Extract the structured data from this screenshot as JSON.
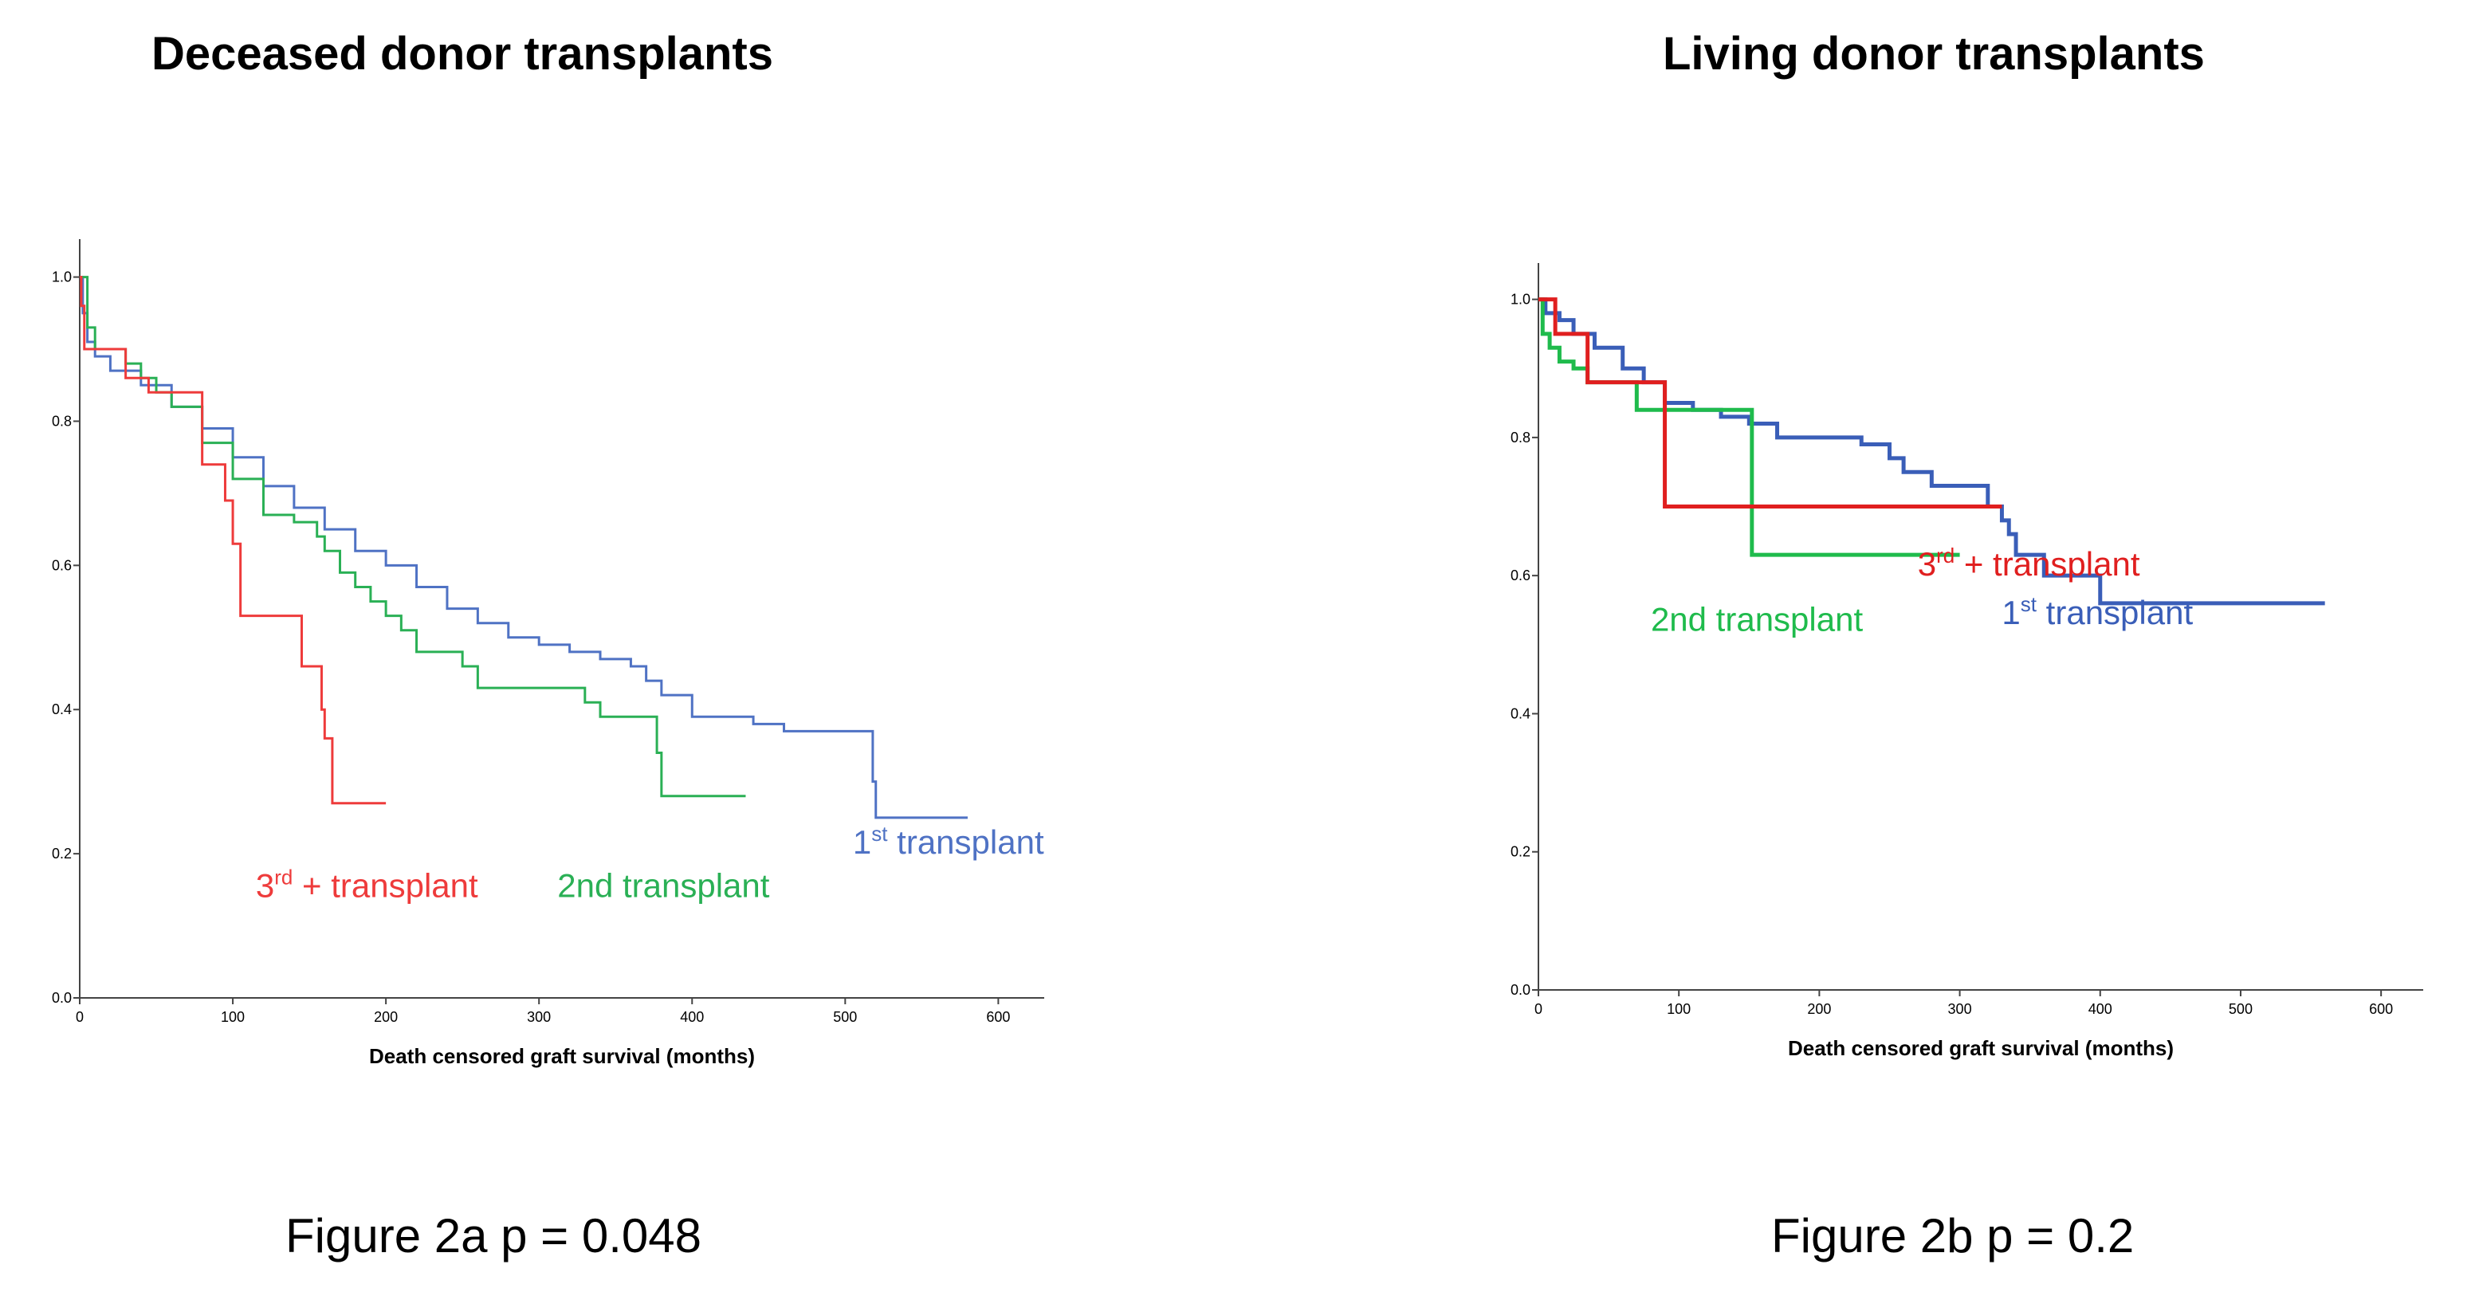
{
  "chart_data": [
    {
      "type": "line",
      "step": true,
      "title": "Deceased donor transplants",
      "caption": "Figure 2a p = 0.048",
      "xlabel": "Death censored graft survival (months)",
      "ylabel": "",
      "xlim": [
        0,
        630
      ],
      "ylim": [
        0,
        1.0
      ],
      "xticks": [
        0,
        100,
        200,
        300,
        400,
        500,
        600
      ],
      "xtick_labels": [
        "0",
        "100",
        "200",
        "300",
        "400",
        "500",
        "600"
      ],
      "yticks": [
        0.0,
        0.2,
        0.4,
        0.6,
        0.8,
        1.0
      ],
      "ytick_labels": [
        "0.0",
        "0.2",
        "0.4",
        "0.6",
        "0.8",
        "1.0"
      ],
      "series": [
        {
          "name": "1st transplant",
          "color": "#4f72c4",
          "label_main": "1",
          "label_sup": "st",
          "label_rest": " transplant",
          "x": [
            0,
            2,
            5,
            10,
            20,
            40,
            60,
            80,
            100,
            120,
            140,
            160,
            180,
            200,
            220,
            240,
            260,
            280,
            300,
            320,
            340,
            360,
            370,
            380,
            400,
            420,
            440,
            460,
            480,
            500,
            515,
            518,
            520,
            580
          ],
          "y": [
            1.0,
            0.95,
            0.91,
            0.89,
            0.87,
            0.85,
            0.82,
            0.79,
            0.75,
            0.71,
            0.68,
            0.65,
            0.62,
            0.6,
            0.57,
            0.54,
            0.52,
            0.5,
            0.49,
            0.48,
            0.47,
            0.46,
            0.44,
            0.42,
            0.39,
            0.39,
            0.38,
            0.37,
            0.37,
            0.37,
            0.37,
            0.3,
            0.25,
            0.25
          ]
        },
        {
          "name": "2nd transplant",
          "color": "#2ab055",
          "label_main": "2nd transplant",
          "label_sup": "",
          "label_rest": "",
          "x": [
            0,
            5,
            10,
            20,
            30,
            40,
            50,
            60,
            80,
            100,
            120,
            140,
            155,
            160,
            170,
            180,
            190,
            200,
            210,
            220,
            230,
            240,
            250,
            260,
            270,
            280,
            290,
            300,
            310,
            320,
            330,
            340,
            350,
            360,
            370,
            375,
            377,
            380,
            400,
            410,
            420,
            435
          ],
          "y": [
            1.0,
            0.93,
            0.9,
            0.9,
            0.88,
            0.86,
            0.84,
            0.82,
            0.77,
            0.72,
            0.67,
            0.66,
            0.64,
            0.62,
            0.59,
            0.57,
            0.55,
            0.53,
            0.51,
            0.48,
            0.48,
            0.48,
            0.46,
            0.43,
            0.43,
            0.43,
            0.43,
            0.43,
            0.43,
            0.43,
            0.41,
            0.39,
            0.39,
            0.39,
            0.39,
            0.39,
            0.34,
            0.28,
            0.28,
            0.28,
            0.28,
            0.28
          ]
        },
        {
          "name": "3rd + transplant",
          "color": "#ee3b3b",
          "label_main": "3",
          "label_sup": "rd",
          "label_rest": " + transplant",
          "x": [
            0,
            1,
            3,
            15,
            30,
            45,
            75,
            80,
            95,
            100,
            105,
            110,
            145,
            150,
            158,
            160,
            165,
            200
          ],
          "y": [
            1.0,
            0.96,
            0.9,
            0.9,
            0.86,
            0.84,
            0.84,
            0.74,
            0.69,
            0.63,
            0.53,
            0.53,
            0.46,
            0.46,
            0.4,
            0.36,
            0.27,
            0.27
          ]
        }
      ]
    },
    {
      "type": "line",
      "step": true,
      "title": "Living donor transplants",
      "caption": "Figure 2b p = 0.2",
      "xlabel": "Death censored graft survival (months)",
      "ylabel": "",
      "xlim": [
        0,
        630
      ],
      "ylim": [
        0,
        1.0
      ],
      "xticks": [
        0,
        100,
        200,
        300,
        400,
        500,
        600
      ],
      "xtick_labels": [
        "0",
        "100",
        "200",
        "300",
        "400",
        "500",
        "600"
      ],
      "yticks": [
        0.0,
        0.2,
        0.4,
        0.6,
        0.8,
        1.0
      ],
      "ytick_labels": [
        "0.0",
        "0.2",
        "0.4",
        "0.6",
        "0.8",
        "1.0"
      ],
      "series": [
        {
          "name": "1st transplant",
          "color": "#3a5eb8",
          "label_main": "1",
          "label_sup": "st",
          "label_rest": " transplant",
          "x": [
            0,
            5,
            15,
            25,
            40,
            60,
            75,
            90,
            110,
            130,
            150,
            170,
            200,
            230,
            250,
            260,
            280,
            300,
            320,
            330,
            335,
            340,
            360,
            380,
            400,
            430,
            480,
            560
          ],
          "y": [
            1.0,
            0.98,
            0.97,
            0.95,
            0.93,
            0.9,
            0.88,
            0.85,
            0.84,
            0.83,
            0.82,
            0.8,
            0.8,
            0.79,
            0.77,
            0.75,
            0.73,
            0.73,
            0.7,
            0.68,
            0.66,
            0.63,
            0.6,
            0.6,
            0.56,
            0.56,
            0.56,
            0.56
          ]
        },
        {
          "name": "2nd transplant",
          "color": "#1fbb4c",
          "label_main": "2nd transplant",
          "label_sup": "",
          "label_rest": "",
          "x": [
            0,
            3,
            8,
            15,
            25,
            35,
            70,
            90,
            110,
            130,
            150,
            152,
            200,
            250,
            300
          ],
          "y": [
            1.0,
            0.95,
            0.93,
            0.91,
            0.9,
            0.88,
            0.84,
            0.84,
            0.84,
            0.84,
            0.84,
            0.63,
            0.63,
            0.63,
            0.63
          ]
        },
        {
          "name": "3rd + transplant",
          "color": "#e01f1f",
          "label_main": "3",
          "label_sup": "rd",
          "label_rest": " + transplant",
          "x": [
            0,
            12,
            35,
            90,
            150,
            200,
            250,
            300,
            330
          ],
          "y": [
            1.0,
            0.95,
            0.88,
            0.7,
            0.7,
            0.7,
            0.7,
            0.7,
            0.7
          ]
        }
      ]
    }
  ]
}
